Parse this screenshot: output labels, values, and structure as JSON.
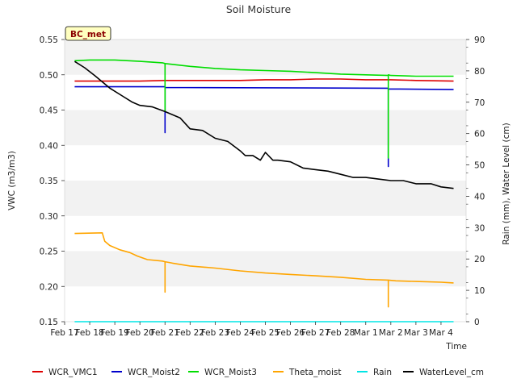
{
  "chart_data": {
    "type": "line",
    "title": "Soil Moisture",
    "site_badge": "BC_met",
    "xlabel": "Time",
    "ylabel": "VWC (m3/m3)",
    "y2label": "Rain (mm), Water Level (cm)",
    "ylim": [
      0.15,
      0.55
    ],
    "y2lim": [
      0,
      90
    ],
    "yticks": [
      "0.15",
      "0.20",
      "0.25",
      "0.30",
      "0.35",
      "0.40",
      "0.45",
      "0.50",
      "0.55"
    ],
    "y2ticks": [
      "0",
      "10",
      "20",
      "30",
      "40",
      "50",
      "60",
      "70",
      "80",
      "90"
    ],
    "xlim": [
      0,
      16
    ],
    "xticks": [
      "Feb 17",
      "Feb 18",
      "Feb 19",
      "Feb 20",
      "Feb 21",
      "Feb 22",
      "Feb 23",
      "Feb 24",
      "Feb 25",
      "Feb 26",
      "Feb 27",
      "Feb 28",
      "Mar 1",
      "Mar 2",
      "Mar 3",
      "Mar 4"
    ],
    "grid": "horizontal-bands",
    "legend_position": "bottom",
    "series": [
      {
        "name": "WCR_VMC1",
        "axis": "left",
        "color": "#dd0000",
        "x": [
          0.4,
          2,
          3,
          4,
          5,
          6,
          7,
          8,
          9,
          10,
          11,
          12,
          13,
          14,
          15.5
        ],
        "y": [
          0.491,
          0.491,
          0.491,
          0.492,
          0.492,
          0.492,
          0.492,
          0.493,
          0.493,
          0.494,
          0.494,
          0.493,
          0.493,
          0.492,
          0.491
        ]
      },
      {
        "name": "WCR_Moist2",
        "axis": "left",
        "color": "#0000cc",
        "x": [
          0.4,
          4.0,
          4.0,
          4.0,
          4.0,
          12.9,
          12.9,
          12.9,
          12.9,
          15.5
        ],
        "y": [
          0.483,
          0.483,
          0.418,
          0.483,
          0.482,
          0.481,
          0.37,
          0.481,
          0.48,
          0.479
        ]
      },
      {
        "name": "WCR_Moist3",
        "axis": "left",
        "color": "#00dd00",
        "x": [
          0.4,
          1,
          2,
          3,
          3.9,
          4.0,
          4.0,
          4.0,
          5,
          6,
          7,
          8,
          9,
          10,
          11,
          12,
          12.9,
          12.9,
          12.9,
          13,
          14,
          15.5
        ],
        "y": [
          0.52,
          0.521,
          0.521,
          0.519,
          0.517,
          0.516,
          0.448,
          0.516,
          0.512,
          0.509,
          0.507,
          0.506,
          0.505,
          0.503,
          0.501,
          0.5,
          0.499,
          0.382,
          0.5,
          0.499,
          0.498,
          0.498
        ]
      },
      {
        "name": "Theta_moist",
        "axis": "left",
        "color": "#ffa500",
        "x": [
          0.4,
          1.5,
          1.6,
          1.8,
          2.2,
          2.6,
          2.9,
          3.3,
          3.9,
          4.0,
          4.0,
          4.0,
          4.3,
          5,
          6,
          7,
          8,
          9,
          10,
          11,
          12,
          12.9,
          12.9,
          12.9,
          13.2,
          14,
          15,
          15.5
        ],
        "y": [
          0.275,
          0.276,
          0.264,
          0.258,
          0.252,
          0.248,
          0.243,
          0.238,
          0.236,
          0.235,
          0.192,
          0.235,
          0.233,
          0.229,
          0.226,
          0.222,
          0.219,
          0.217,
          0.215,
          0.213,
          0.21,
          0.209,
          0.171,
          0.209,
          0.208,
          0.207,
          0.206,
          0.205
        ]
      },
      {
        "name": "Rain",
        "axis": "right",
        "color": "#00e5e5",
        "x": [
          0.4,
          15.5
        ],
        "y": [
          0,
          0
        ]
      },
      {
        "name": "WaterLevel_cm",
        "axis": "right",
        "color": "#000000",
        "x": [
          0.4,
          0.8,
          1.2,
          1.5,
          1.8,
          2.3,
          2.7,
          3.0,
          3.5,
          4.0,
          4.6,
          5.0,
          5.5,
          6.0,
          6.5,
          7.0,
          7.2,
          7.5,
          7.8,
          8.0,
          8.3,
          8.5,
          9.0,
          9.5,
          10.0,
          10.5,
          11.0,
          11.5,
          12.0,
          12.5,
          13.0,
          13.5,
          14.0,
          14.3,
          14.6,
          15.0,
          15.5
        ],
        "y": [
          83,
          81,
          78.5,
          76.5,
          74.5,
          72,
          70,
          69,
          68.5,
          67,
          65,
          61.5,
          61,
          58.5,
          57.5,
          54.5,
          53,
          53,
          51.5,
          54,
          51.5,
          51.5,
          51,
          49,
          48.5,
          48,
          47,
          46,
          46,
          45.5,
          45,
          45,
          44,
          44,
          44,
          43,
          42.5
        ]
      }
    ]
  }
}
